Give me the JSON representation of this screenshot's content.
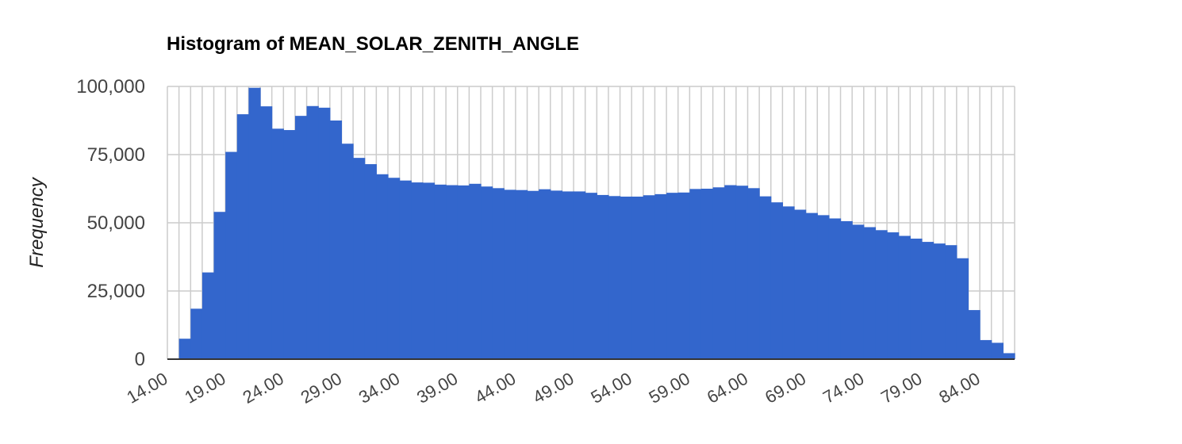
{
  "chart_data": {
    "type": "bar",
    "title": "Histogram of MEAN_SOLAR_ZENITH_ANGLE",
    "xlabel": "",
    "ylabel": "Frequency",
    "xlim": [
      14,
      87
    ],
    "ylim": [
      0,
      100000
    ],
    "bin_width": 1,
    "x_tick_values": [
      14,
      19,
      24,
      29,
      34,
      39,
      44,
      49,
      54,
      59,
      64,
      69,
      74,
      79,
      84
    ],
    "x_tick_labels": [
      "14.00",
      "19.00",
      "24.00",
      "29.00",
      "34.00",
      "39.00",
      "44.00",
      "49.00",
      "54.00",
      "59.00",
      "64.00",
      "69.00",
      "74.00",
      "79.00",
      "84.00"
    ],
    "y_tick_values": [
      0,
      25000,
      50000,
      75000,
      100000
    ],
    "y_tick_labels": [
      "0",
      "25,000",
      "50,000",
      "75,000",
      "100,000"
    ],
    "grid": true,
    "legend": "none",
    "series": [
      {
        "color": "#3366cc",
        "bins": [
          [
            15,
            7500
          ],
          [
            16,
            18500
          ],
          [
            17,
            31800
          ],
          [
            18,
            54000
          ],
          [
            19,
            76000
          ],
          [
            20,
            89800
          ],
          [
            21,
            99500
          ],
          [
            22,
            92700
          ],
          [
            23,
            84500
          ],
          [
            24,
            84000
          ],
          [
            25,
            89200
          ],
          [
            26,
            92800
          ],
          [
            27,
            92200
          ],
          [
            28,
            87500
          ],
          [
            29,
            79000
          ],
          [
            30,
            73800
          ],
          [
            31,
            71500
          ],
          [
            32,
            67800
          ],
          [
            33,
            66500
          ],
          [
            34,
            65500
          ],
          [
            35,
            64800
          ],
          [
            36,
            64700
          ],
          [
            37,
            64000
          ],
          [
            38,
            63800
          ],
          [
            39,
            63700
          ],
          [
            40,
            64300
          ],
          [
            41,
            63300
          ],
          [
            42,
            62700
          ],
          [
            43,
            62100
          ],
          [
            44,
            62000
          ],
          [
            45,
            61700
          ],
          [
            46,
            62300
          ],
          [
            47,
            61800
          ],
          [
            48,
            61500
          ],
          [
            49,
            61500
          ],
          [
            50,
            61000
          ],
          [
            51,
            60200
          ],
          [
            52,
            59800
          ],
          [
            53,
            59600
          ],
          [
            54,
            59600
          ],
          [
            55,
            60100
          ],
          [
            56,
            60500
          ],
          [
            57,
            61000
          ],
          [
            58,
            61100
          ],
          [
            59,
            62400
          ],
          [
            60,
            62500
          ],
          [
            61,
            63000
          ],
          [
            62,
            63800
          ],
          [
            63,
            63600
          ],
          [
            64,
            62700
          ],
          [
            65,
            59700
          ],
          [
            66,
            57500
          ],
          [
            67,
            56000
          ],
          [
            68,
            54800
          ],
          [
            69,
            53600
          ],
          [
            70,
            52800
          ],
          [
            71,
            51600
          ],
          [
            72,
            50600
          ],
          [
            73,
            49300
          ],
          [
            74,
            48400
          ],
          [
            75,
            47300
          ],
          [
            76,
            46500
          ],
          [
            77,
            45200
          ],
          [
            78,
            44200
          ],
          [
            79,
            43000
          ],
          [
            80,
            42400
          ],
          [
            81,
            41800
          ],
          [
            82,
            37000
          ],
          [
            83,
            18000
          ],
          [
            84,
            7000
          ],
          [
            85,
            6000
          ],
          [
            86,
            2200
          ]
        ]
      }
    ]
  }
}
